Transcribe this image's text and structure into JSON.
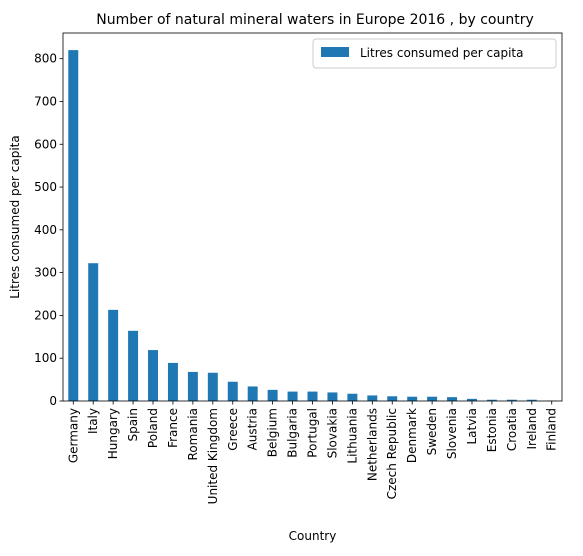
{
  "chart_data": {
    "type": "bar",
    "title": "Number of natural mineral waters in Europe 2016 , by country",
    "xlabel": "Country",
    "ylabel": "Litres consumed per capita",
    "ylim": [
      0,
      860
    ],
    "yticks": [
      0,
      100,
      200,
      300,
      400,
      500,
      600,
      700,
      800
    ],
    "grid": false,
    "legend_position": "top-right",
    "bar_color": "#1f77b4",
    "categories": [
      "Germany",
      "Italy",
      "Hungary",
      "Spain",
      "Poland",
      "France",
      "Romania",
      "United Kingdom",
      "Greece",
      "Austria",
      "Belgium",
      "Bulgaria",
      "Portugal",
      "Slovakia",
      "Lithuania",
      "Netherlands",
      "Czech Republic",
      "Denmark",
      "Sweden",
      "Slovenia",
      "Latvia",
      "Estonia",
      "Croatia",
      "Ireland",
      "Finland"
    ],
    "series": [
      {
        "name": "Litres consumed per capita",
        "values": [
          820,
          322,
          213,
          164,
          119,
          89,
          68,
          66,
          45,
          34,
          26,
          22,
          22,
          20,
          17,
          13,
          11,
          10,
          10,
          9,
          5,
          3,
          3,
          3,
          1
        ]
      }
    ]
  }
}
